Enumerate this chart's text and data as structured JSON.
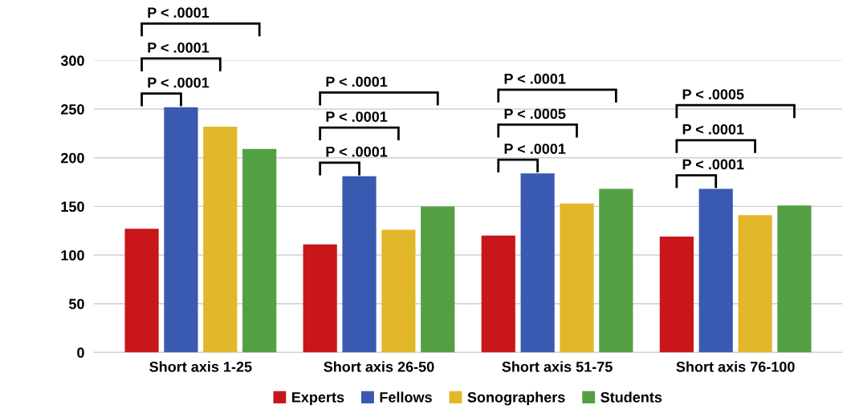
{
  "chart_data": {
    "type": "bar",
    "categories": [
      "Short axis 1-25",
      "Short axis 26-50",
      "Short axis 51-75",
      "Short axis 76-100"
    ],
    "series": [
      {
        "name": "Experts",
        "color": "#c8161b",
        "values": [
          127,
          111,
          120,
          119
        ]
      },
      {
        "name": "Fellows",
        "color": "#3a59b0",
        "values": [
          252,
          181,
          184,
          168
        ]
      },
      {
        "name": "Sonographers",
        "color": "#e2b72a",
        "values": [
          232,
          126,
          153,
          141
        ]
      },
      {
        "name": "Students",
        "color": "#52a043",
        "values": [
          209,
          150,
          168,
          151
        ]
      }
    ],
    "ylim": [
      0,
      300
    ],
    "yticks": [
      0,
      50,
      100,
      150,
      200,
      250,
      300
    ],
    "grid": "y",
    "legend": "bottom",
    "annotations": [
      "P < .0001",
      "P < .0001",
      "P < .0001",
      "P < .0001",
      "P < .0001",
      "P < .0001",
      "P < .0001",
      "P < .0005",
      "P < .0001",
      "P < .0001",
      "P < .0001",
      "P < .0005"
    ]
  }
}
